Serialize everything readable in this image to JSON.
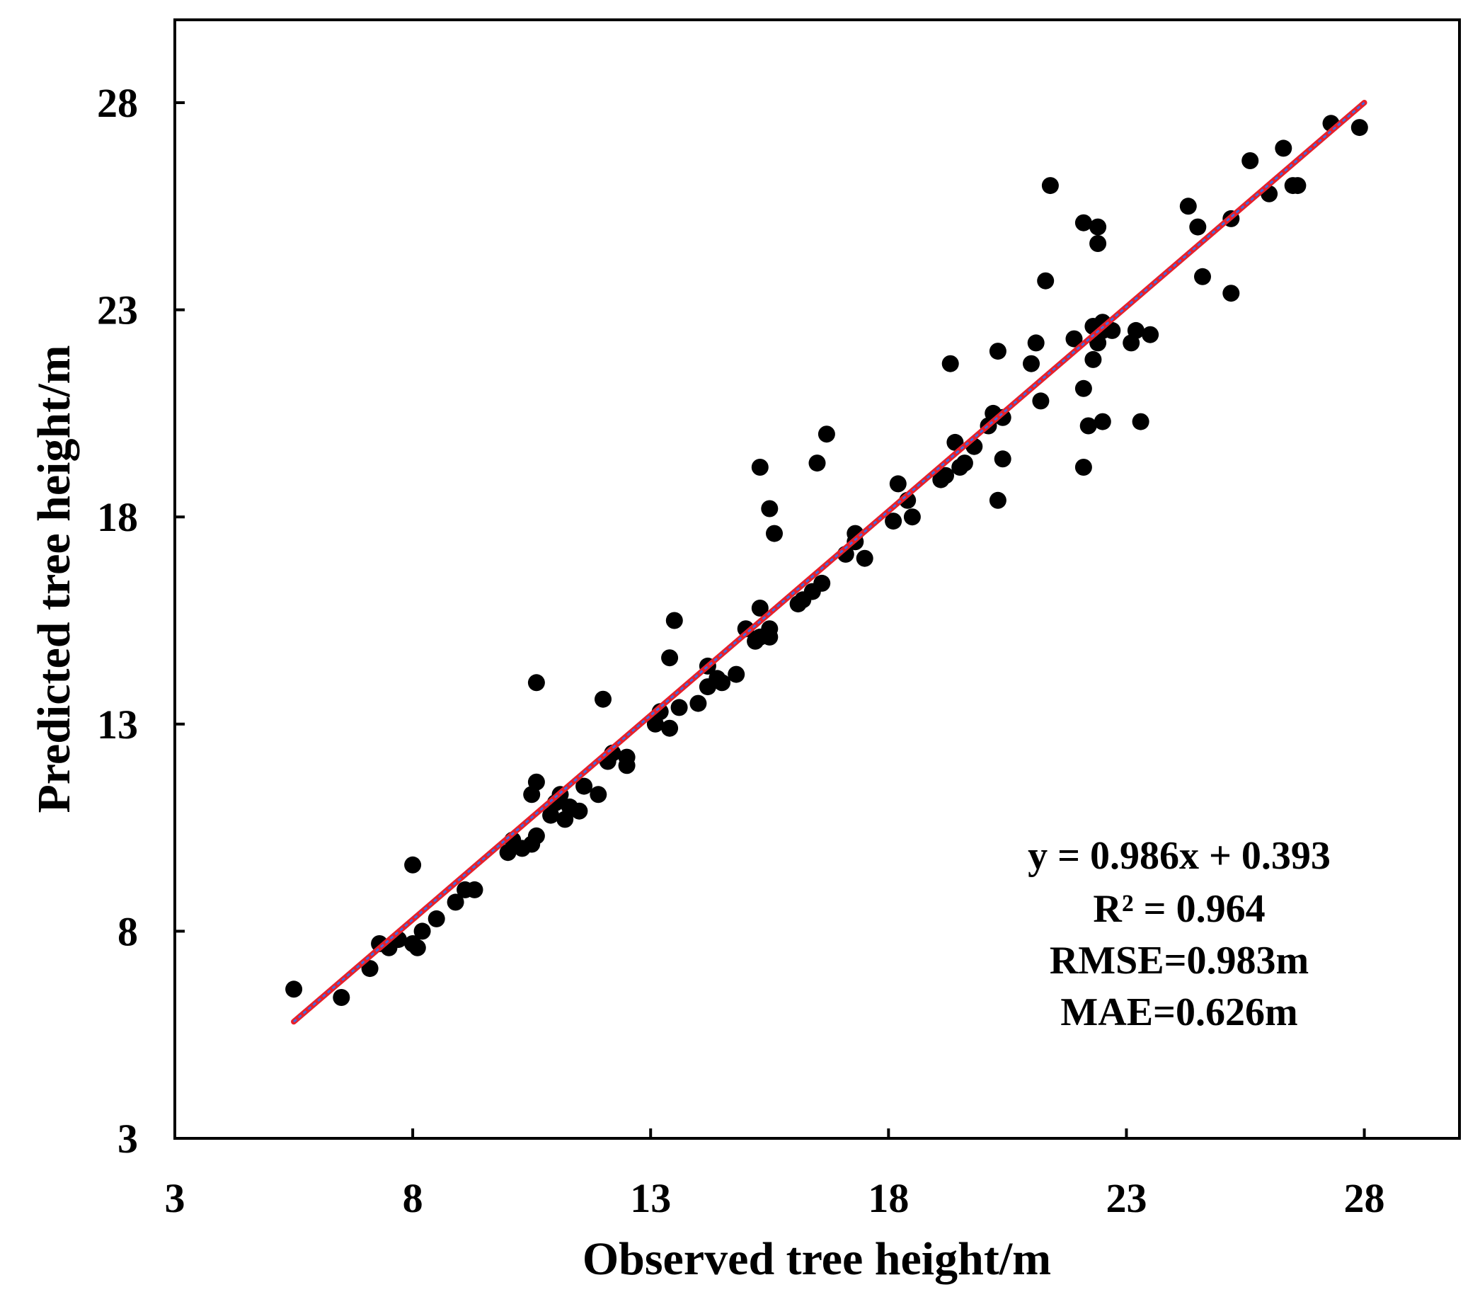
{
  "chart_data": {
    "type": "scatter",
    "title": "",
    "xlabel": "Observed tree height/m",
    "ylabel": "Predicted tree height/m",
    "xlim": [
      3,
      30
    ],
    "ylim": [
      3,
      30
    ],
    "xticks": [
      3,
      8,
      13,
      18,
      23,
      28
    ],
    "yticks": [
      3,
      8,
      13,
      18,
      23,
      28
    ],
    "grid": false,
    "legend": "none",
    "series": [
      {
        "name": "observations",
        "color": "#000000",
        "points": [
          [
            5.5,
            6.6
          ],
          [
            6.5,
            6.4
          ],
          [
            7.1,
            7.1
          ],
          [
            7.3,
            7.7
          ],
          [
            7.5,
            7.6
          ],
          [
            7.7,
            7.8
          ],
          [
            8.0,
            7.7
          ],
          [
            8.1,
            7.6
          ],
          [
            8.2,
            8.0
          ],
          [
            8.5,
            8.3
          ],
          [
            8.0,
            9.6
          ],
          [
            8.9,
            8.7
          ],
          [
            9.1,
            9.0
          ],
          [
            9.3,
            9.0
          ],
          [
            10.0,
            9.9
          ],
          [
            10.1,
            10.2
          ],
          [
            10.3,
            10.0
          ],
          [
            10.5,
            10.1
          ],
          [
            10.6,
            10.3
          ],
          [
            10.5,
            11.3
          ],
          [
            10.6,
            11.6
          ],
          [
            10.6,
            14.0
          ],
          [
            10.9,
            10.8
          ],
          [
            11.0,
            11.1
          ],
          [
            11.1,
            11.3
          ],
          [
            11.2,
            10.7
          ],
          [
            11.3,
            11.0
          ],
          [
            11.5,
            10.9
          ],
          [
            11.6,
            11.5
          ],
          [
            11.9,
            11.3
          ],
          [
            12.0,
            13.6
          ],
          [
            12.1,
            12.1
          ],
          [
            12.2,
            12.3
          ],
          [
            12.5,
            12.0
          ],
          [
            12.5,
            12.2
          ],
          [
            13.1,
            13.0
          ],
          [
            13.2,
            13.3
          ],
          [
            13.4,
            12.9
          ],
          [
            13.6,
            13.4
          ],
          [
            13.4,
            14.6
          ],
          [
            13.5,
            15.5
          ],
          [
            14.0,
            13.5
          ],
          [
            14.2,
            13.9
          ],
          [
            14.4,
            14.1
          ],
          [
            14.2,
            14.4
          ],
          [
            14.5,
            14.0
          ],
          [
            14.8,
            14.2
          ],
          [
            15.0,
            15.3
          ],
          [
            15.2,
            15.0
          ],
          [
            15.3,
            15.1
          ],
          [
            15.3,
            15.8
          ],
          [
            15.5,
            15.3
          ],
          [
            15.5,
            15.1
          ],
          [
            15.3,
            19.2
          ],
          [
            15.5,
            18.2
          ],
          [
            15.6,
            17.6
          ],
          [
            16.1,
            15.9
          ],
          [
            16.2,
            16.0
          ],
          [
            16.4,
            16.2
          ],
          [
            16.6,
            16.4
          ],
          [
            16.5,
            19.3
          ],
          [
            16.7,
            20.0
          ],
          [
            17.1,
            17.1
          ],
          [
            17.3,
            17.4
          ],
          [
            17.3,
            17.6
          ],
          [
            17.5,
            17.0
          ],
          [
            18.1,
            17.9
          ],
          [
            18.2,
            18.8
          ],
          [
            18.4,
            18.4
          ],
          [
            18.5,
            18.0
          ],
          [
            19.1,
            18.9
          ],
          [
            19.2,
            19.0
          ],
          [
            19.4,
            19.8
          ],
          [
            19.3,
            21.7
          ],
          [
            19.5,
            19.2
          ],
          [
            19.6,
            19.3
          ],
          [
            19.8,
            19.7
          ],
          [
            20.1,
            20.2
          ],
          [
            20.2,
            20.5
          ],
          [
            20.3,
            18.4
          ],
          [
            20.3,
            22.0
          ],
          [
            20.4,
            20.4
          ],
          [
            20.4,
            19.4
          ],
          [
            21.0,
            21.7
          ],
          [
            21.1,
            22.2
          ],
          [
            21.2,
            20.8
          ],
          [
            21.3,
            23.7
          ],
          [
            21.4,
            26.0
          ],
          [
            21.9,
            22.3
          ],
          [
            22.1,
            21.1
          ],
          [
            22.1,
            25.1
          ],
          [
            22.1,
            19.2
          ],
          [
            22.2,
            20.2
          ],
          [
            22.3,
            22.6
          ],
          [
            22.3,
            21.8
          ],
          [
            22.4,
            22.2
          ],
          [
            22.4,
            24.6
          ],
          [
            22.4,
            25.0
          ],
          [
            22.5,
            22.5
          ],
          [
            22.5,
            22.7
          ],
          [
            22.5,
            20.3
          ],
          [
            22.7,
            22.5
          ],
          [
            23.1,
            22.2
          ],
          [
            23.2,
            22.5
          ],
          [
            23.3,
            20.3
          ],
          [
            23.5,
            22.4
          ],
          [
            24.3,
            25.5
          ],
          [
            24.5,
            25.0
          ],
          [
            24.6,
            23.8
          ],
          [
            25.2,
            25.2
          ],
          [
            25.2,
            23.4
          ],
          [
            25.6,
            26.6
          ],
          [
            26.0,
            25.8
          ],
          [
            26.3,
            26.9
          ],
          [
            26.5,
            26.0
          ],
          [
            26.6,
            26.0
          ],
          [
            27.3,
            27.5
          ],
          [
            27.9,
            27.4
          ]
        ]
      }
    ],
    "fit_line": {
      "slope": 0.986,
      "intercept": 0.393,
      "x_range": [
        5.5,
        28
      ],
      "color_outer": "#e8202a",
      "color_inner": "#4169e1"
    },
    "annotations": [
      "y = 0.986x + 0.393",
      "R² = 0.964",
      "RMSE=0.983m",
      "MAE=0.626m"
    ],
    "annotation_position": "bottom-right"
  }
}
